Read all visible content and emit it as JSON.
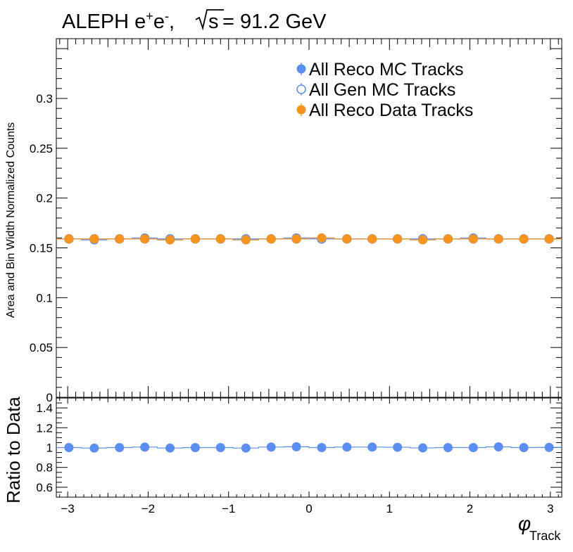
{
  "title": {
    "main": "ALEPH e",
    "sup1": "+",
    "mid": "e",
    "sup2": "-",
    "comma": ",",
    "sqrt_arg": "s",
    "energy": "= 91.2 GeV"
  },
  "colors": {
    "reco_mc": "#5b8ef0",
    "gen_mc": "#5b8ef0",
    "reco_data": "#f7941d",
    "ratio": "#5b8ef0",
    "axis": "#000000"
  },
  "chart_data": [
    {
      "type": "scatter",
      "panel": "main",
      "ylabel": "Area and Bin Width Normalized Counts",
      "xlim": [
        -3.1416,
        3.1416
      ],
      "ylim": [
        0,
        0.36
      ],
      "yticks": [
        0,
        0.05,
        0.1,
        0.15,
        0.2,
        0.25,
        0.3
      ],
      "ytick_labels": [
        "0",
        "0.05",
        "0.1",
        "0.15",
        "0.2",
        "0.25",
        "0.3"
      ],
      "legend_position": "top-right",
      "x": [
        -2.985,
        -2.67,
        -2.356,
        -2.042,
        -1.728,
        -1.414,
        -1.1,
        -0.785,
        -0.471,
        -0.157,
        0.157,
        0.471,
        0.785,
        1.1,
        1.414,
        1.728,
        2.042,
        2.356,
        2.67,
        2.985
      ],
      "series": [
        {
          "name": "All Reco MC Tracks",
          "marker": "filled",
          "values": [
            0.159,
            0.158,
            0.159,
            0.16,
            0.158,
            0.159,
            0.159,
            0.158,
            0.159,
            0.16,
            0.16,
            0.159,
            0.159,
            0.159,
            0.158,
            0.159,
            0.16,
            0.159,
            0.159,
            0.159
          ]
        },
        {
          "name": "All Gen MC Tracks",
          "marker": "open",
          "values": [
            0.159,
            0.159,
            0.159,
            0.159,
            0.159,
            0.159,
            0.159,
            0.159,
            0.159,
            0.159,
            0.159,
            0.159,
            0.159,
            0.159,
            0.159,
            0.159,
            0.159,
            0.159,
            0.159,
            0.159
          ]
        },
        {
          "name": "All Reco Data Tracks",
          "marker": "filled",
          "values": [
            0.159,
            0.159,
            0.159,
            0.159,
            0.158,
            0.159,
            0.159,
            0.158,
            0.159,
            0.159,
            0.16,
            0.159,
            0.159,
            0.159,
            0.158,
            0.159,
            0.159,
            0.159,
            0.159,
            0.159
          ]
        }
      ]
    },
    {
      "type": "scatter",
      "panel": "ratio",
      "ylabel": "Ratio to Data",
      "xlabel": "φ",
      "xlabel_sub": "Track",
      "xlim": [
        -3.1416,
        3.1416
      ],
      "ylim": [
        0.5,
        1.5
      ],
      "yticks": [
        0.6,
        0.8,
        1,
        1.2,
        1.4
      ],
      "ytick_labels": [
        "0.6",
        "0.8",
        "1",
        "1.2",
        "1.4"
      ],
      "xticks": [
        -3,
        -2,
        -1,
        0,
        1,
        2,
        3
      ],
      "xtick_labels": [
        "−3",
        "−2",
        "−1",
        "0",
        "1",
        "2",
        "3"
      ],
      "x": [
        -2.985,
        -2.67,
        -2.356,
        -2.042,
        -1.728,
        -1.414,
        -1.1,
        -0.785,
        -0.471,
        -0.157,
        0.157,
        0.471,
        0.785,
        1.1,
        1.414,
        1.728,
        2.042,
        2.356,
        2.67,
        2.985
      ],
      "series": [
        {
          "name": "",
          "marker": "filled",
          "values": [
            1.0,
            0.995,
            1.0,
            1.005,
            0.995,
            1.0,
            1.0,
            0.995,
            1.005,
            1.008,
            1.0,
            1.005,
            1.005,
            1.003,
            0.997,
            1.0,
            1.0,
            1.007,
            1.0,
            1.002
          ]
        }
      ]
    }
  ]
}
